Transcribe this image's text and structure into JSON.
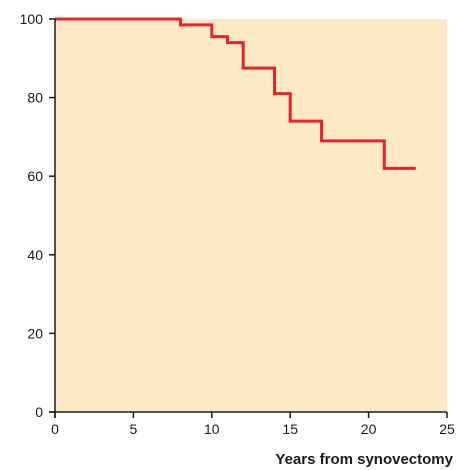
{
  "colors": {
    "plot_background": "#fde9c6",
    "line": "#e8232a",
    "axis": "#1a1a1a"
  },
  "chart_data": {
    "type": "line",
    "step": true,
    "title": "",
    "xlabel": "Years from synovectomy",
    "ylabel": "",
    "xlim": [
      0,
      25
    ],
    "ylim": [
      0,
      100
    ],
    "xticks": [
      0,
      5,
      10,
      15,
      20,
      25
    ],
    "yticks": [
      0,
      20,
      40,
      60,
      80,
      100
    ],
    "grid": false,
    "series": [
      {
        "x": [
          0,
          8,
          10,
          11,
          12,
          14,
          15,
          17,
          21,
          23
        ],
        "y": [
          100,
          98.5,
          95.5,
          94,
          87.5,
          81,
          74,
          69,
          62,
          62
        ]
      }
    ]
  }
}
